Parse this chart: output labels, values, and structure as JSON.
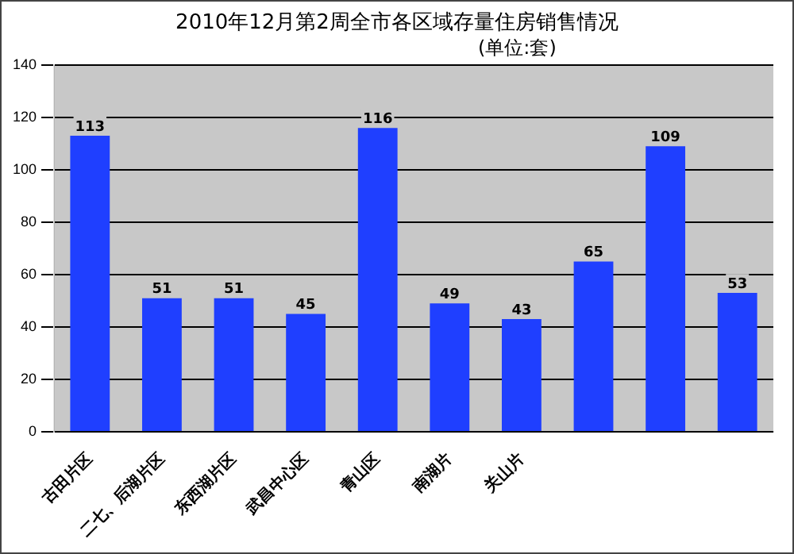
{
  "chart_data": {
    "type": "bar",
    "title": "2010年12月第2周全市各区域存量住房销售情况",
    "subtitle": "(单位:套)",
    "categories": [
      "古田片区",
      "二七、后湖片区",
      "东西湖片区",
      "武昌中心区",
      "青山区",
      "南湖片",
      "关山片",
      null,
      null,
      null
    ],
    "values": [
      113,
      51,
      51,
      45,
      116,
      49,
      43,
      65,
      109,
      53
    ],
    "color": "#1f3fff",
    "ylim": [
      0,
      140
    ],
    "yticks": [
      0,
      20,
      40,
      60,
      80,
      100,
      120,
      140
    ],
    "grid": "y",
    "legend": false,
    "data_labels": true
  }
}
